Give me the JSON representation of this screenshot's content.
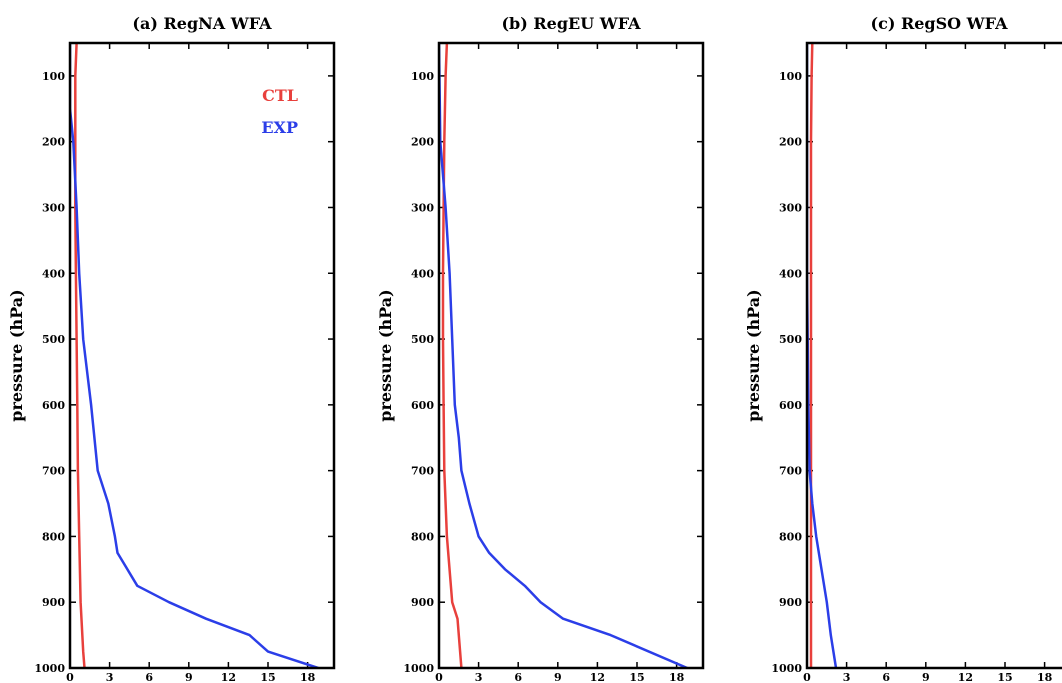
{
  "chart_data": [
    {
      "type": "line",
      "title": "(a) RegNA WFA",
      "xlabel": "",
      "ylabel": "pressure (hPa)",
      "xlim": [
        0,
        20
      ],
      "ylim": [
        50,
        1000
      ],
      "y_reversed": true,
      "xticks": [
        "0",
        "3",
        "6",
        "9",
        "12",
        "15",
        "18"
      ],
      "yticks": [
        "100",
        "200",
        "300",
        "400",
        "500",
        "600",
        "700",
        "800",
        "900",
        "1000"
      ],
      "legend": {
        "position": "top-right",
        "entries": [
          "CTL",
          "EXP"
        ]
      },
      "series": [
        {
          "name": "CTL",
          "color": "#e8403c",
          "x": [
            0.5,
            0.4,
            0.4,
            0.4,
            0.45,
            0.5,
            0.55,
            0.6,
            0.7,
            0.8,
            1.0,
            1.1
          ],
          "y": [
            50,
            100,
            200,
            300,
            400,
            500,
            600,
            700,
            800,
            900,
            975,
            1000
          ]
        },
        {
          "name": "EXP",
          "color": "#2b3ee8",
          "x": [
            0.0,
            0.0,
            0.25,
            0.5,
            0.7,
            1.0,
            1.6,
            2.1,
            2.9,
            3.4,
            3.6,
            5.1,
            7.5,
            10.3,
            13.6,
            15.0,
            18.8
          ],
          "y": [
            50,
            150,
            200,
            300,
            400,
            500,
            600,
            700,
            750,
            800,
            825,
            875,
            900,
            925,
            950,
            975,
            1000
          ]
        }
      ]
    },
    {
      "type": "line",
      "title": "(b) RegEU WFA",
      "xlabel": "",
      "ylabel": "pressure (hPa)",
      "xlim": [
        0,
        20
      ],
      "ylim": [
        50,
        1000
      ],
      "y_reversed": true,
      "xticks": [
        "0",
        "3",
        "6",
        "9",
        "12",
        "15",
        "18"
      ],
      "yticks": [
        "100",
        "200",
        "300",
        "400",
        "500",
        "600",
        "700",
        "800",
        "900",
        "1000"
      ],
      "series": [
        {
          "name": "CTL",
          "color": "#e8403c",
          "x": [
            0.6,
            0.5,
            0.4,
            0.35,
            0.3,
            0.3,
            0.35,
            0.4,
            0.6,
            1.0,
            1.4,
            1.7
          ],
          "y": [
            50,
            100,
            200,
            300,
            400,
            500,
            600,
            700,
            800,
            900,
            925,
            1000
          ]
        },
        {
          "name": "EXP",
          "color": "#2b3ee8",
          "x": [
            0.0,
            0.1,
            0.5,
            0.8,
            1.0,
            1.2,
            1.5,
            1.7,
            2.3,
            3.0,
            3.8,
            5.0,
            6.5,
            7.7,
            9.4,
            13.0,
            18.8
          ],
          "y": [
            50,
            200,
            300,
            400,
            500,
            600,
            650,
            700,
            750,
            800,
            825,
            850,
            875,
            900,
            925,
            950,
            1000
          ]
        }
      ]
    },
    {
      "type": "line",
      "title": "(c) RegSO WFA",
      "xlabel": "",
      "ylabel": "pressure (hPa)",
      "xlim": [
        0,
        20
      ],
      "ylim": [
        50,
        1000
      ],
      "y_reversed": true,
      "xticks": [
        "0",
        "3",
        "6",
        "9",
        "12",
        "15",
        "18"
      ],
      "yticks": [
        "100",
        "200",
        "300",
        "400",
        "500",
        "600",
        "700",
        "800",
        "900",
        "1000"
      ],
      "series": [
        {
          "name": "CTL",
          "color": "#e8403c",
          "x": [
            0.4,
            0.35,
            0.3,
            0.3,
            0.3,
            0.3,
            0.3,
            0.3,
            0.3,
            0.3,
            0.3,
            0.3
          ],
          "y": [
            50,
            100,
            200,
            300,
            400,
            500,
            600,
            700,
            800,
            900,
            975,
            1000
          ]
        },
        {
          "name": "EXP",
          "color": "#2b3ee8",
          "x": [
            0.0,
            0.0,
            0.0,
            0.0,
            0.05,
            0.1,
            0.2,
            0.4,
            0.7,
            1.1,
            1.5,
            1.8,
            2.2
          ],
          "y": [
            50,
            200,
            300,
            400,
            500,
            600,
            700,
            750,
            800,
            850,
            900,
            950,
            1000
          ]
        }
      ]
    }
  ]
}
